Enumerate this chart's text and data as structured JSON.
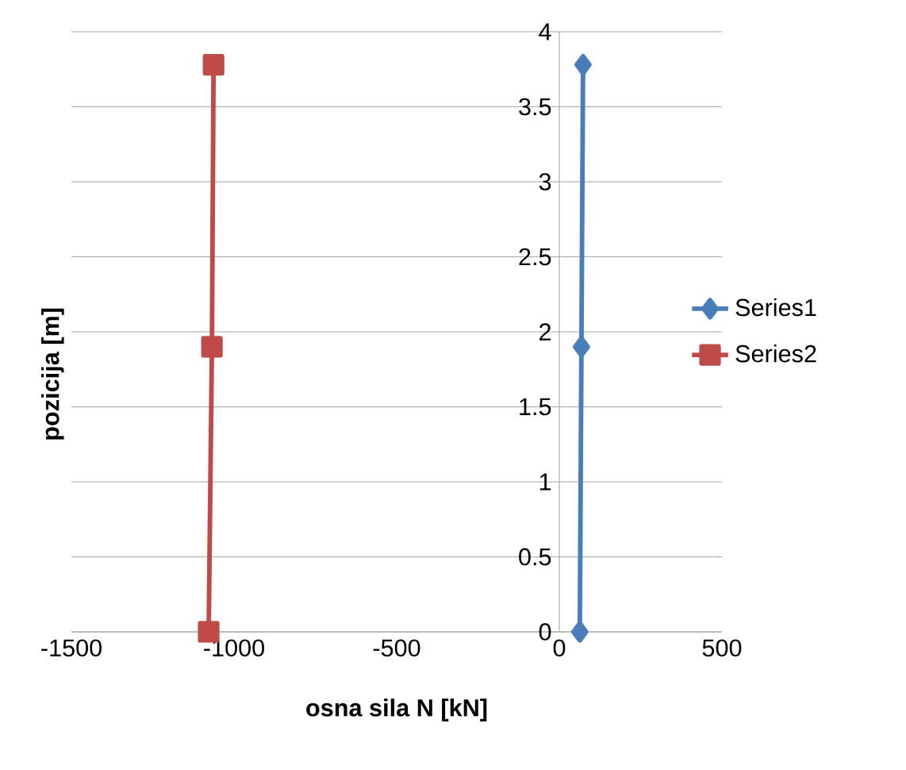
{
  "chart_data": {
    "type": "line",
    "xlabel": "osna sila N [kN]",
    "ylabel": "pozicija [m]",
    "xlim": [
      -1500,
      500
    ],
    "xticks": [
      -1500,
      -1000,
      -500,
      0,
      500
    ],
    "ylim": [
      0,
      4
    ],
    "yticks": [
      0,
      0.5,
      1,
      1.5,
      2,
      2.5,
      3,
      3.5,
      4
    ],
    "grid": "y",
    "legend": "right",
    "series": [
      {
        "name": "Series1",
        "color": "#4a7ebb",
        "marker": "diamond",
        "x": [
          63,
          68,
          73
        ],
        "values": [
          0,
          1.9,
          3.78
        ]
      },
      {
        "name": "Series2",
        "color": "#be4b48",
        "marker": "square",
        "x": [
          -1078,
          -1068,
          -1063
        ],
        "values": [
          0,
          1.9,
          3.78
        ]
      }
    ]
  }
}
